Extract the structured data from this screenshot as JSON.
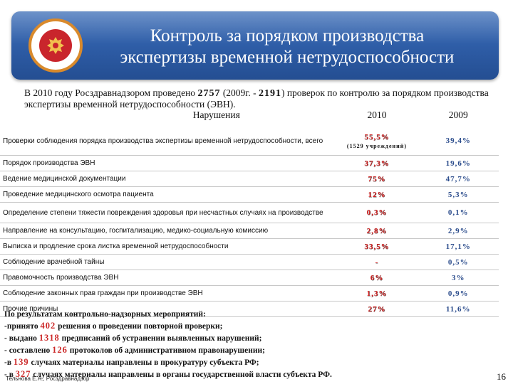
{
  "slide": {
    "title_line1": "Контроль за порядком производства",
    "title_line2": "экспертизы временной нетрудоспособности",
    "intro_part1": "В 2010 году Росздравнадзором проведено ",
    "intro_num1": "2757",
    "intro_part2": " (2009г. - ",
    "intro_num2": "2191",
    "intro_part3": ") проверок по контролю за порядком производства экспертизы временной нетрудоспособности (ЭВН)."
  },
  "table": {
    "headers": [
      "Нарушения",
      "2010",
      "2009"
    ],
    "rows": [
      {
        "name": "Проверки соблюдения порядка производства экспертизы временной нетрудоспособности, всего",
        "v2010": "55,5%",
        "v2010_sub": "(1529 учреждений)",
        "v2009": "39,4%"
      },
      {
        "name": "Порядок производства ЭВН",
        "v2010": "37,3%",
        "v2009": "19,6%"
      },
      {
        "name": "Ведение медицинской документации",
        "v2010": "75%",
        "v2009": "47,7%"
      },
      {
        "name": "Проведение медицинского осмотра пациента",
        "v2010": "12%",
        "v2009": "5,3%"
      },
      {
        "name": "Определение степени тяжести повреждения здоровья при несчастных случаях на производстве",
        "v2010": "0,3%",
        "v2009": "0,1%"
      },
      {
        "name": "Направление на консультацию, госпитализацию, медико-социальную комиссию",
        "v2010": "2,8%",
        "v2009": "2,9%"
      },
      {
        "name": "Выписка и продление срока листка временной нетрудоспособности",
        "v2010": "33,5%",
        "v2009": "17,1%"
      },
      {
        "name": "Соблюдение врачебной тайны",
        "v2010": "-",
        "v2009": "0,5%"
      },
      {
        "name": "Правомочность производства ЭВН",
        "v2010": "6%",
        "v2009": "3%"
      },
      {
        "name": "Соблюдение законных прав граждан при производстве ЭВН",
        "v2010": "1,3%",
        "v2009": "0,9%"
      },
      {
        "name": "Прочие причины",
        "v2010": "27%",
        "v2009": "11,6%"
      }
    ]
  },
  "results": {
    "heading": "По результатам контрольно-надзорных мероприятий:",
    "items": [
      {
        "prefix": "-принято ",
        "num": "402",
        "suffix": " решения о проведении повторной проверки;"
      },
      {
        "prefix": "- выдано ",
        "num": "1318",
        "suffix": " предписаний об устранении выявленных нарушений;"
      },
      {
        "prefix": "- составлено ",
        "num": "126",
        "suffix": " протоколов об административном правонарушении;"
      },
      {
        "prefix": "-в ",
        "num": "139",
        "suffix": " случаях материалы направлены в прокуратуру субъекта РФ;"
      },
      {
        "prefix": "- в ",
        "num": "327",
        "suffix": " случаях материалы направлены в органы государственной власти субъекта РФ."
      }
    ]
  },
  "footer": {
    "author": "Тельнова Е.А., Росздравнадзор",
    "page_number": "16"
  },
  "colors": {
    "banner": "#2f5ea8",
    "accent_red": "#d42020",
    "accent_blue": "#2b4c8c"
  },
  "icons": {
    "emblem": "coat-of-arms-icon"
  }
}
